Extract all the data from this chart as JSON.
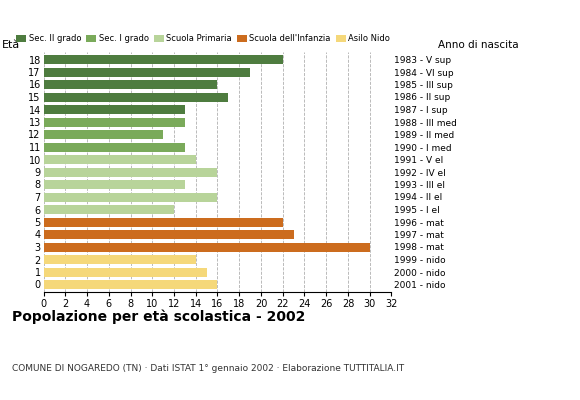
{
  "ages": [
    18,
    17,
    16,
    15,
    14,
    13,
    12,
    11,
    10,
    9,
    8,
    7,
    6,
    5,
    4,
    3,
    2,
    1,
    0
  ],
  "values": [
    22,
    19,
    16,
    17,
    13,
    13,
    11,
    13,
    14,
    16,
    13,
    16,
    12,
    22,
    23,
    30,
    14,
    15,
    16
  ],
  "categories": [
    "Sec. II grado",
    "Sec. I grado",
    "Scuola Primaria",
    "Scuola dell'Infanzia",
    "Asilo Nido"
  ],
  "colors": [
    "#4e7c3f",
    "#7aaa5a",
    "#b8d49a",
    "#cc6c1e",
    "#f5d87a"
  ],
  "right_labels": [
    "1983 - V sup",
    "1984 - VI sup",
    "1985 - III sup",
    "1986 - II sup",
    "1987 - I sup",
    "1988 - III med",
    "1989 - II med",
    "1990 - I med",
    "1991 - V el",
    "1992 - IV el",
    "1993 - III el",
    "1994 - II el",
    "1995 - I el",
    "1996 - mat",
    "1997 - mat",
    "1998 - mat",
    "1999 - nido",
    "2000 - nido",
    "2001 - nido"
  ],
  "bar_colors_by_age": {
    "18": "#4e7c3f",
    "17": "#4e7c3f",
    "16": "#4e7c3f",
    "15": "#4e7c3f",
    "14": "#4e7c3f",
    "13": "#7aaa5a",
    "12": "#7aaa5a",
    "11": "#7aaa5a",
    "10": "#b8d49a",
    "9": "#b8d49a",
    "8": "#b8d49a",
    "7": "#b8d49a",
    "6": "#b8d49a",
    "5": "#cc6c1e",
    "4": "#cc6c1e",
    "3": "#cc6c1e",
    "2": "#f5d87a",
    "1": "#f5d87a",
    "0": "#f5d87a"
  },
  "title": "Popolazione per età scolastica - 2002",
  "subtitle": "COMUNE DI NOGAREDO (TN) · Dati ISTAT 1° gennaio 2002 · Elaborazione TUTTITALIA.IT",
  "xlabel_left": "Età",
  "xlabel_right": "Anno di nascita",
  "xlim": [
    0,
    32
  ],
  "xticks": [
    0,
    2,
    4,
    6,
    8,
    10,
    12,
    14,
    16,
    18,
    20,
    22,
    24,
    26,
    28,
    30,
    32
  ],
  "background_color": "#ffffff",
  "grid_color": "#b0b0b0",
  "bar_height": 0.72
}
